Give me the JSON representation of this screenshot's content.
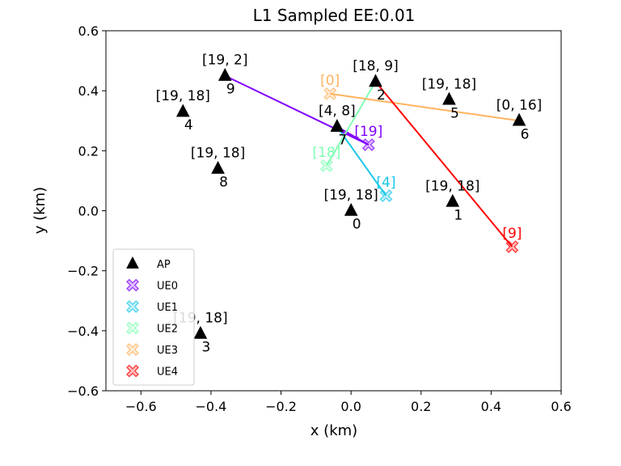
{
  "chart_data": {
    "type": "scatter",
    "title": "L1 Sampled EE:0.01",
    "xlabel": "x (km)",
    "ylabel": "y (km)",
    "xlim": [
      -0.7,
      0.6
    ],
    "ylim": [
      -0.6,
      0.6
    ],
    "xticks": [
      -0.6,
      -0.4,
      -0.2,
      0.0,
      0.2,
      0.4,
      0.6
    ],
    "xtick_labels": [
      "−0.6",
      "−0.4",
      "−0.2",
      "0.0",
      "0.2",
      "0.4",
      "0.6"
    ],
    "yticks": [
      -0.6,
      -0.4,
      -0.2,
      0.0,
      0.2,
      0.4,
      0.6
    ],
    "ytick_labels": [
      "−0.6",
      "−0.4",
      "−0.2",
      "0.0",
      "0.2",
      "0.4",
      "0.6"
    ],
    "grid": false,
    "legend_position": "lower-left",
    "legend": [
      {
        "label": "AP",
        "marker": "triangle",
        "color": "#000000"
      },
      {
        "label": "UE0",
        "marker": "x-cross",
        "color": "#8000ff"
      },
      {
        "label": "UE1",
        "marker": "x-cross",
        "color": "#1ac7e7"
      },
      {
        "label": "UE2",
        "marker": "x-cross",
        "color": "#80ffb4"
      },
      {
        "label": "UE3",
        "marker": "x-cross",
        "color": "#ffb360"
      },
      {
        "label": "UE4",
        "marker": "x-cross",
        "color": "#ff0000"
      }
    ],
    "access_points": [
      {
        "id": "0",
        "x": 0.0,
        "y": 0.0,
        "label": "[19, 18]"
      },
      {
        "id": "1",
        "x": 0.29,
        "y": 0.03,
        "label": "[19, 18]"
      },
      {
        "id": "2",
        "x": 0.07,
        "y": 0.43,
        "label": "[18, 9]"
      },
      {
        "id": "3",
        "x": -0.43,
        "y": -0.41,
        "label": "[19, 18]"
      },
      {
        "id": "4",
        "x": -0.48,
        "y": 0.33,
        "label": "[19, 18]"
      },
      {
        "id": "5",
        "x": 0.28,
        "y": 0.37,
        "label": "[19, 18]"
      },
      {
        "id": "6",
        "x": 0.48,
        "y": 0.3,
        "label": "[0, 16]"
      },
      {
        "id": "7",
        "x": -0.04,
        "y": 0.28,
        "label": "[4, 8]"
      },
      {
        "id": "8",
        "x": -0.38,
        "y": 0.14,
        "label": "[19, 18]"
      },
      {
        "id": "9",
        "x": -0.36,
        "y": 0.45,
        "label": "[19, 2]"
      }
    ],
    "user_equipment": [
      {
        "name": "UE0",
        "x": 0.05,
        "y": 0.22,
        "label": "[19]",
        "color": "#8000ff",
        "links": [
          "9",
          "7"
        ]
      },
      {
        "name": "UE1",
        "x": 0.1,
        "y": 0.05,
        "label": "[4]",
        "color": "#1ac7e7",
        "links": [
          "7"
        ]
      },
      {
        "name": "UE2",
        "x": -0.07,
        "y": 0.15,
        "label": "[18]",
        "color": "#80ffb4",
        "links": [
          "2"
        ]
      },
      {
        "name": "UE3",
        "x": -0.06,
        "y": 0.39,
        "label": "[0]",
        "color": "#ffb360",
        "links": [
          "6"
        ]
      },
      {
        "name": "UE4",
        "x": 0.46,
        "y": -0.12,
        "label": "[9]",
        "color": "#ff0000",
        "links": [
          "2"
        ]
      }
    ]
  }
}
